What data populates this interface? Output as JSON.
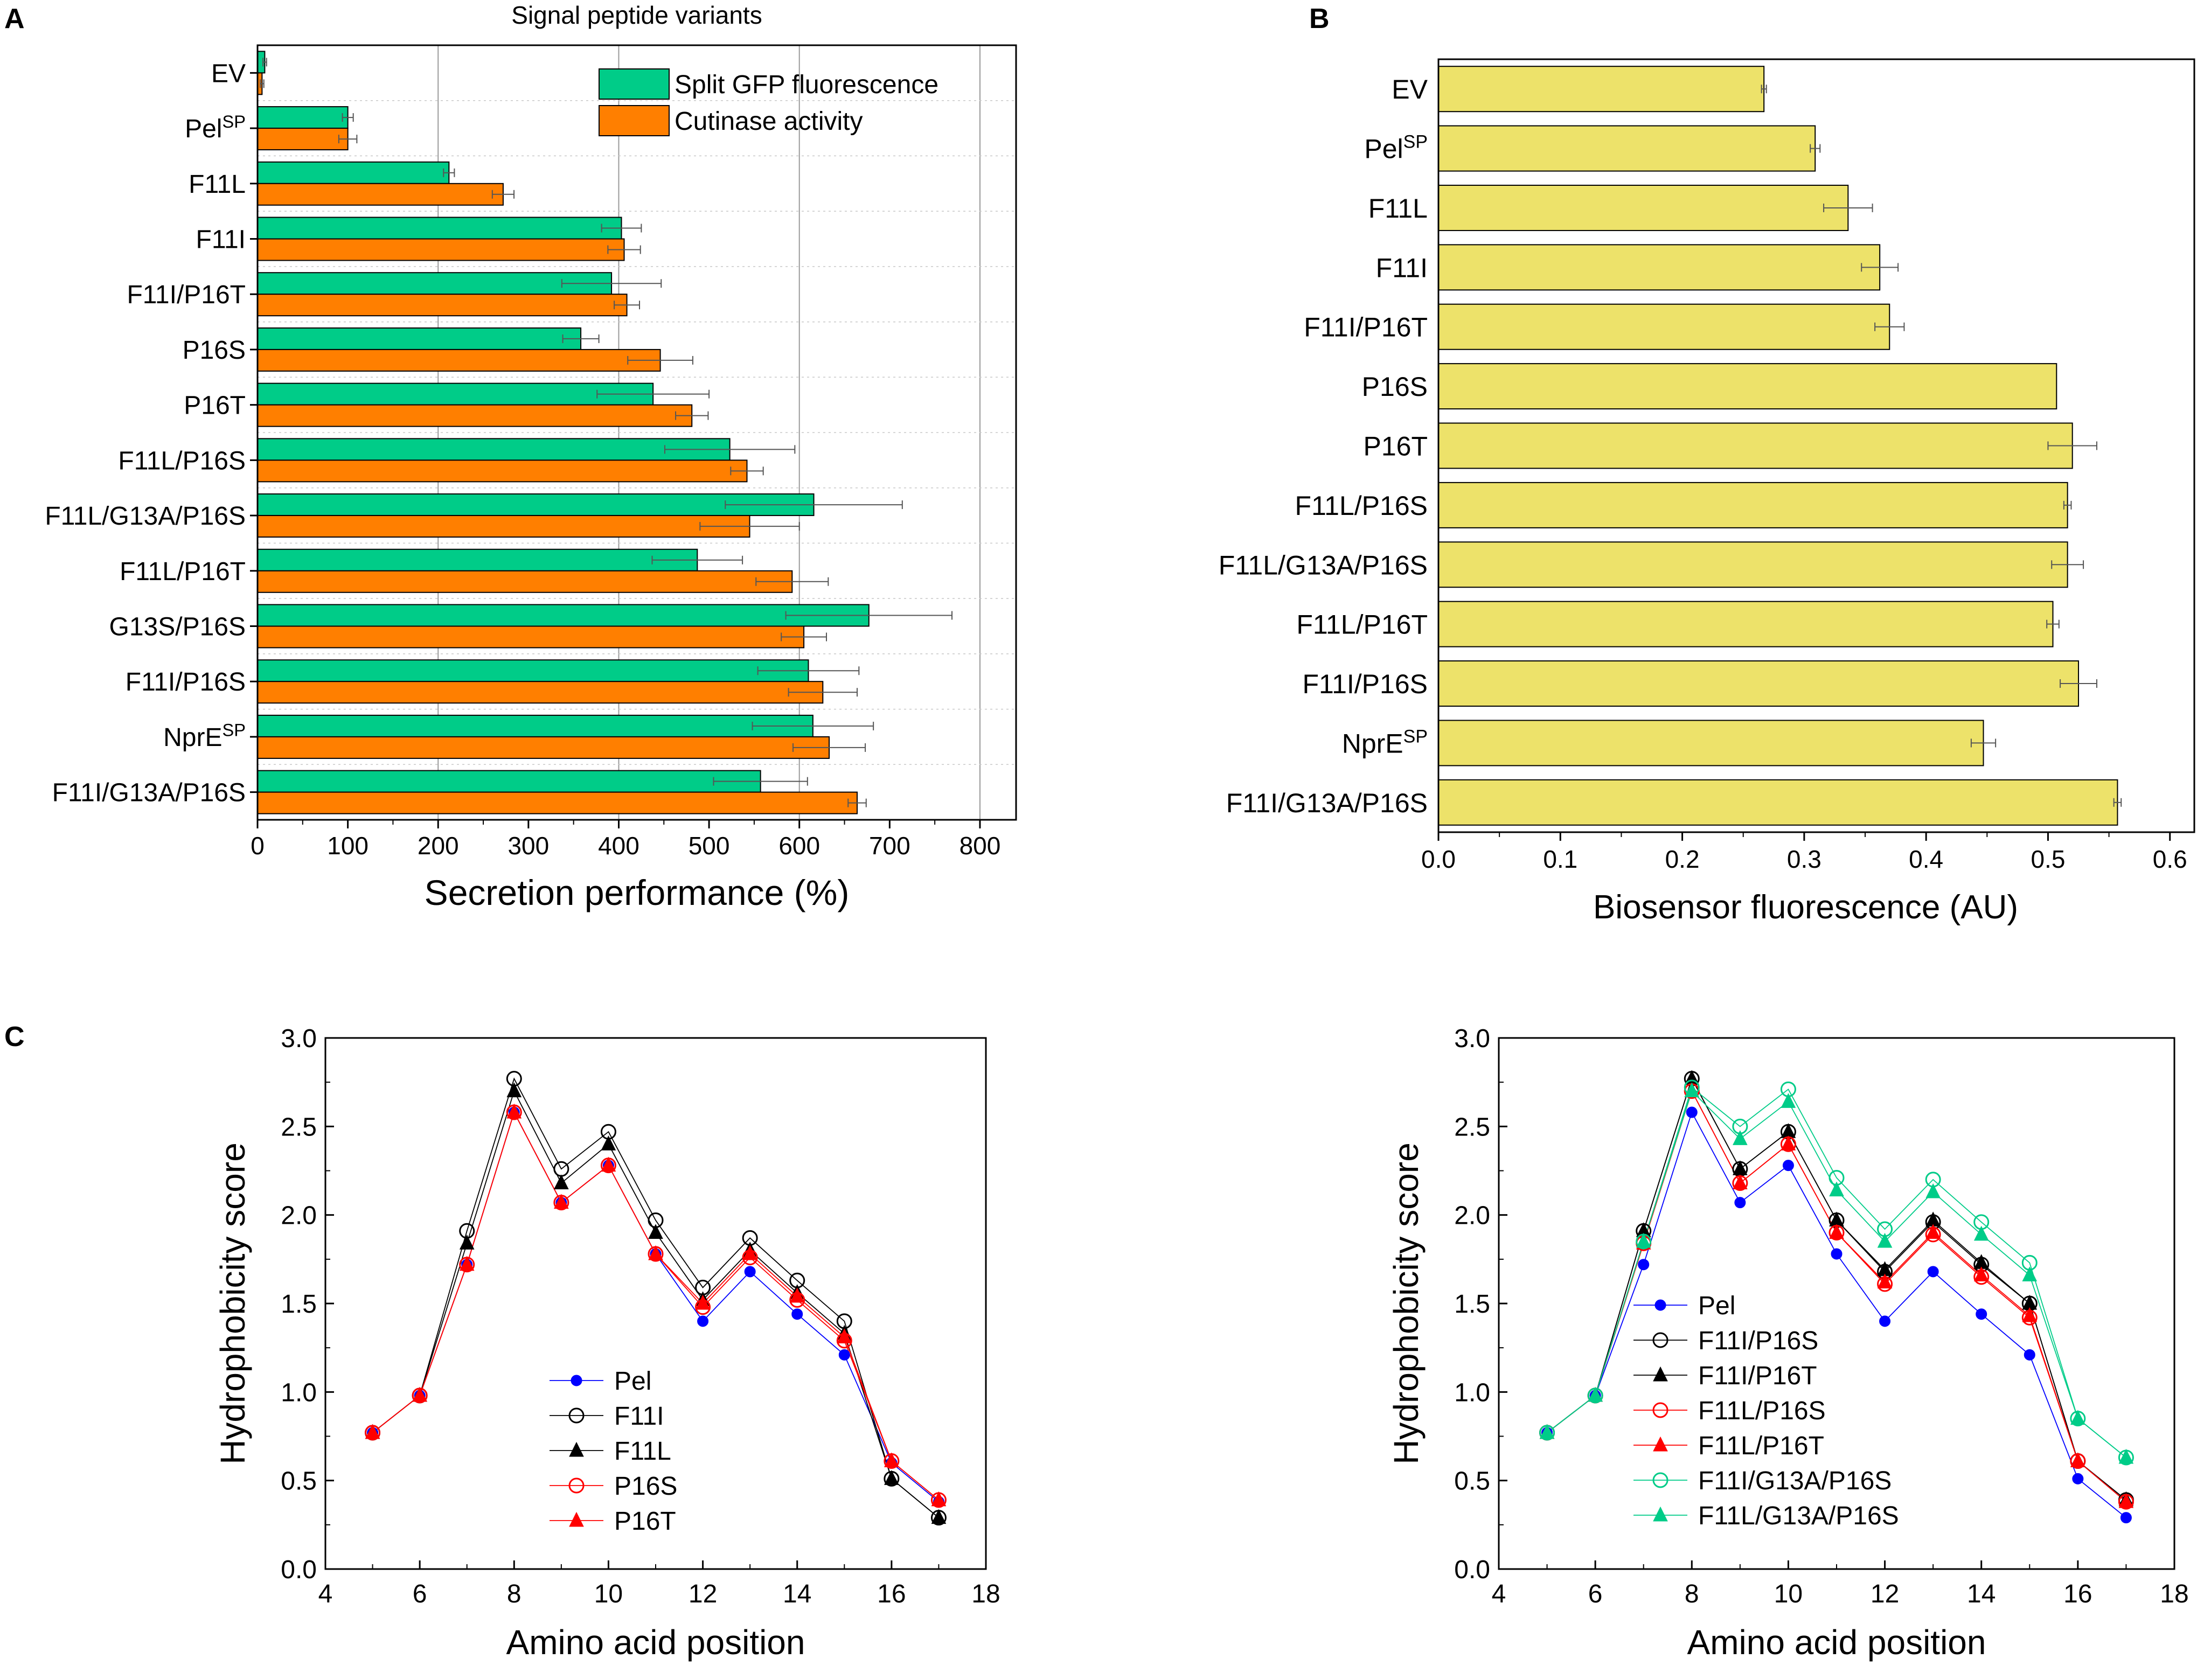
{
  "panel_labels": {
    "a": "A",
    "b": "B",
    "c": "C"
  },
  "colors": {
    "gfp": "#00CC88",
    "cutinase": "#FF7F00",
    "biosensor": "#EDE26A",
    "pel": "#0000FF",
    "f11i": "#000000",
    "f11l": "#000000",
    "p16s": "#FF0000",
    "p16t": "#FF0000",
    "g13a": "#00CC88"
  },
  "chart_data": [
    {
      "id": "A",
      "type": "bar",
      "orientation": "horizontal",
      "title": "Signal peptide variants",
      "xlabel": "Secretion performance (%)",
      "ylabel": "",
      "xlim": [
        0,
        840
      ],
      "xticks": [
        "0",
        "100",
        "200",
        "300",
        "400",
        "500",
        "600",
        "700",
        "800"
      ],
      "xtick_values": [
        0,
        100,
        200,
        300,
        400,
        500,
        600,
        700,
        800
      ],
      "gridlines_x": [
        200,
        400,
        600,
        800
      ],
      "legend": [
        "Split GFP fluorescence",
        "Cutinase activity"
      ],
      "legend_position": "top-right",
      "categories": [
        {
          "base": "EV",
          "sup": ""
        },
        {
          "base": "Pel",
          "sup": "SP"
        },
        {
          "base": "F11L",
          "sup": ""
        },
        {
          "base": "F11I",
          "sup": ""
        },
        {
          "base": "F11I/P16T",
          "sup": ""
        },
        {
          "base": "P16S",
          "sup": ""
        },
        {
          "base": "P16T",
          "sup": ""
        },
        {
          "base": "F11L/P16S",
          "sup": ""
        },
        {
          "base": "F11L/G13A/P16S",
          "sup": ""
        },
        {
          "base": "F11L/P16T",
          "sup": ""
        },
        {
          "base": "G13S/P16S",
          "sup": ""
        },
        {
          "base": "F11I/P16S",
          "sup": ""
        },
        {
          "base": "NprE",
          "sup": "SP"
        },
        {
          "base": "F11I/G13A/P16S",
          "sup": ""
        }
      ],
      "series": [
        {
          "name": "Split GFP fluorescence",
          "values": [
            8,
            100,
            212,
            403,
            392,
            358,
            438,
            523,
            616,
            487,
            677,
            610,
            615,
            557
          ],
          "errors": [
            2,
            6,
            6,
            22,
            55,
            20,
            62,
            72,
            98,
            50,
            92,
            56,
            67,
            52
          ]
        },
        {
          "name": "Cutinase activity",
          "values": [
            5,
            100,
            272,
            406,
            409,
            446,
            481,
            542,
            545,
            592,
            605,
            626,
            633,
            664
          ],
          "errors": [
            2,
            10,
            12,
            18,
            14,
            36,
            18,
            18,
            55,
            40,
            25,
            38,
            40,
            10
          ]
        }
      ]
    },
    {
      "id": "B",
      "type": "bar",
      "orientation": "horizontal",
      "title": "",
      "xlabel": "Biosensor fluorescence (AU)",
      "ylabel": "",
      "xlim": [
        0,
        0.62
      ],
      "xticks": [
        "0.0",
        "0.1",
        "0.2",
        "0.3",
        "0.4",
        "0.5",
        "0.6"
      ],
      "xtick_values": [
        0,
        0.1,
        0.2,
        0.3,
        0.4,
        0.5,
        0.6
      ],
      "categories": [
        {
          "base": "EV",
          "sup": ""
        },
        {
          "base": "Pel",
          "sup": "SP"
        },
        {
          "base": "F11L",
          "sup": ""
        },
        {
          "base": "F11I",
          "sup": ""
        },
        {
          "base": "F11I/P16T",
          "sup": ""
        },
        {
          "base": "P16S",
          "sup": ""
        },
        {
          "base": "P16T",
          "sup": ""
        },
        {
          "base": "F11L/P16S",
          "sup": ""
        },
        {
          "base": "F11L/G13A/P16S",
          "sup": ""
        },
        {
          "base": "F11L/P16T",
          "sup": ""
        },
        {
          "base": "F11I/P16S",
          "sup": ""
        },
        {
          "base": "NprE",
          "sup": "SP"
        },
        {
          "base": "F11I/G13A/P16S",
          "sup": ""
        }
      ],
      "values": [
        0.267,
        0.309,
        0.336,
        0.362,
        0.37,
        0.507,
        0.52,
        0.516,
        0.516,
        0.504,
        0.525,
        0.447,
        0.557
      ],
      "errors": [
        0.002,
        0.004,
        0.02,
        0.015,
        0.012,
        0.0,
        0.02,
        0.003,
        0.013,
        0.005,
        0.015,
        0.01,
        0.003
      ]
    },
    {
      "id": "C1",
      "type": "line",
      "title": "",
      "xlabel": "Amino acid position",
      "ylabel": "Hydrophobicity score",
      "xlim": [
        4,
        18
      ],
      "ylim": [
        0,
        3
      ],
      "xticks": [
        "4",
        "6",
        "8",
        "10",
        "12",
        "14",
        "16",
        "18"
      ],
      "xtick_values": [
        4,
        6,
        8,
        10,
        12,
        14,
        16,
        18
      ],
      "yticks": [
        "0.0",
        "0.5",
        "1.0",
        "1.5",
        "2.0",
        "2.5",
        "3.0"
      ],
      "ytick_values": [
        0,
        0.5,
        1,
        1.5,
        2,
        2.5,
        3
      ],
      "legend_position": "bottom-center",
      "x": [
        5,
        6,
        7,
        8,
        9,
        10,
        11,
        12,
        13,
        14,
        15,
        16,
        17
      ],
      "series": [
        {
          "name": "Pel",
          "color_key": "pel",
          "marker": "circle",
          "filled": true,
          "values": [
            0.77,
            0.98,
            1.72,
            2.58,
            2.07,
            2.28,
            1.78,
            1.4,
            1.68,
            1.44,
            1.21,
            0.6,
            0.38
          ]
        },
        {
          "name": "F11I",
          "color_key": "f11i",
          "marker": "circle",
          "filled": false,
          "values": [
            0.77,
            0.98,
            1.91,
            2.77,
            2.26,
            2.47,
            1.97,
            1.59,
            1.87,
            1.63,
            1.4,
            0.51,
            0.29
          ]
        },
        {
          "name": "F11L",
          "color_key": "f11l",
          "marker": "triangle",
          "filled": true,
          "values": [
            0.77,
            0.98,
            1.84,
            2.7,
            2.18,
            2.4,
            1.9,
            1.52,
            1.8,
            1.56,
            1.33,
            0.51,
            0.29
          ]
        },
        {
          "name": "P16S",
          "color_key": "p16s",
          "marker": "circle",
          "filled": false,
          "values": [
            0.77,
            0.98,
            1.72,
            2.58,
            2.07,
            2.28,
            1.78,
            1.48,
            1.76,
            1.52,
            1.29,
            0.61,
            0.39
          ]
        },
        {
          "name": "P16T",
          "color_key": "p16t",
          "marker": "triangle",
          "filled": true,
          "values": [
            0.77,
            0.98,
            1.72,
            2.58,
            2.07,
            2.28,
            1.78,
            1.5,
            1.78,
            1.54,
            1.31,
            0.61,
            0.39
          ]
        }
      ]
    },
    {
      "id": "C2",
      "type": "line",
      "title": "",
      "xlabel": "Amino acid position",
      "ylabel": "Hydrophobicity score",
      "xlim": [
        4,
        18
      ],
      "ylim": [
        0,
        3
      ],
      "xticks": [
        "4",
        "6",
        "8",
        "10",
        "12",
        "14",
        "16",
        "18"
      ],
      "xtick_values": [
        4,
        6,
        8,
        10,
        12,
        14,
        16,
        18
      ],
      "yticks": [
        "0.0",
        "0.5",
        "1.0",
        "1.5",
        "2.0",
        "2.5",
        "3.0"
      ],
      "ytick_values": [
        0,
        0.5,
        1,
        1.5,
        2,
        2.5,
        3
      ],
      "legend_position": "bottom-left",
      "x": [
        5,
        6,
        7,
        8,
        9,
        10,
        11,
        12,
        13,
        14,
        15,
        16,
        17
      ],
      "series": [
        {
          "name": "Pel",
          "color_key": "pel",
          "marker": "circle",
          "filled": true,
          "values": [
            0.77,
            0.98,
            1.72,
            2.58,
            2.07,
            2.28,
            1.78,
            1.4,
            1.68,
            1.44,
            1.21,
            0.51,
            0.29
          ]
        },
        {
          "name": "F11I/P16S",
          "color_key": "f11i",
          "marker": "circle",
          "filled": false,
          "values": [
            0.77,
            0.98,
            1.91,
            2.77,
            2.26,
            2.47,
            1.97,
            1.68,
            1.96,
            1.72,
            1.5,
            0.61,
            0.39
          ]
        },
        {
          "name": "F11I/P16T",
          "color_key": "f11l",
          "marker": "triangle",
          "filled": true,
          "values": [
            0.77,
            0.98,
            1.91,
            2.77,
            2.26,
            2.47,
            1.97,
            1.69,
            1.97,
            1.73,
            1.5,
            0.61,
            0.39
          ]
        },
        {
          "name": "F11L/P16S",
          "color_key": "p16s",
          "marker": "circle",
          "filled": false,
          "values": [
            0.77,
            0.98,
            1.84,
            2.7,
            2.18,
            2.4,
            1.9,
            1.61,
            1.89,
            1.65,
            1.42,
            0.61,
            0.38
          ]
        },
        {
          "name": "F11L/P16T",
          "color_key": "p16t",
          "marker": "triangle",
          "filled": true,
          "values": [
            0.77,
            0.98,
            1.84,
            2.7,
            2.18,
            2.4,
            1.9,
            1.62,
            1.9,
            1.66,
            1.43,
            0.61,
            0.38
          ]
        },
        {
          "name": "F11I/G13A/P16S",
          "color_key": "g13a",
          "marker": "circle",
          "filled": false,
          "values": [
            0.77,
            0.98,
            1.85,
            2.72,
            2.5,
            2.71,
            2.21,
            1.92,
            2.2,
            1.96,
            1.73,
            0.85,
            0.63
          ]
        },
        {
          "name": "F11L/G13A/P16S",
          "color_key": "g13a",
          "marker": "triangle",
          "filled": true,
          "values": [
            0.77,
            0.98,
            1.85,
            2.7,
            2.43,
            2.64,
            2.14,
            1.85,
            2.13,
            1.89,
            1.66,
            0.85,
            0.63
          ]
        }
      ]
    }
  ]
}
